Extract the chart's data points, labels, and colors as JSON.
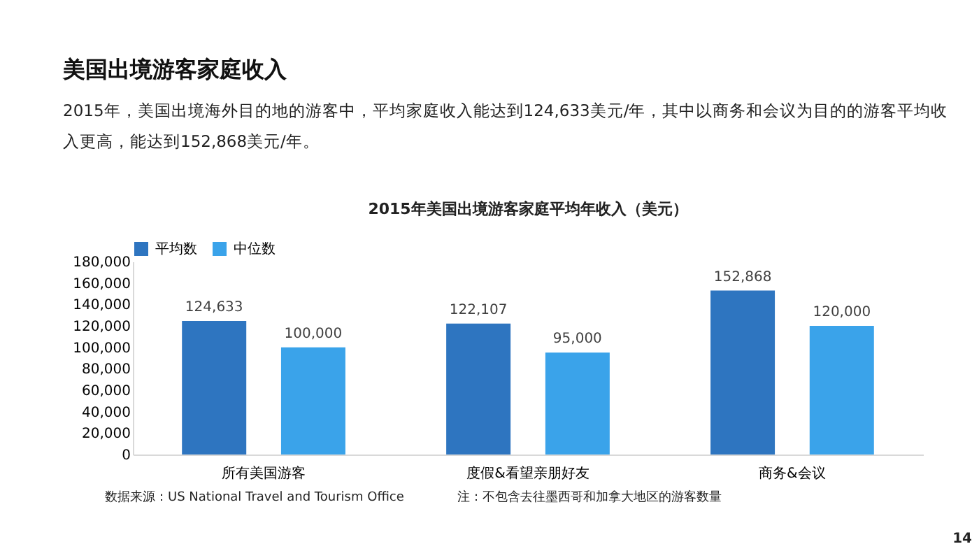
{
  "chart_data": {
    "type": "bar",
    "title": "美国出境游客家庭收入",
    "subtitle": [
      "2015年，美国出境海外目的地的游客中，平均家庭收入能达到124,633美元/年，其中以商务和会议为目的的游客平均收",
      "入更高，能达到152,868美元/年。"
    ],
    "categories": [
      "所有美国游客",
      "度假&看望亲朋好友",
      "商务&会议"
    ],
    "series": [
      {
        "name": "平均数",
        "color": "#2e75c0",
        "values": [
          124633,
          122107,
          152868
        ],
        "value_labels": [
          "124,633",
          "122,107",
          "152,868"
        ]
      },
      {
        "name": "中位数",
        "color": "#3aa3ea",
        "values": [
          100000,
          95000,
          120000
        ],
        "value_labels": [
          "100,000",
          "95,000",
          "120,000"
        ]
      }
    ],
    "ylim": [
      0,
      180000
    ],
    "yticks": [
      0,
      {
        "value": 20000,
        "label": "20,000"
      },
      {
        "value": 40000,
        "label": "40,000"
      },
      {
        "value": 60000,
        "label": "60,000"
      },
      {
        "value": 80000,
        "label": "80,000"
      },
      {
        "value": 100000,
        "label": "100,000"
      },
      {
        "value": 120000,
        "label": "120,000"
      },
      {
        "value": 140000,
        "label": "140,000"
      },
      {
        "value": 160000,
        "label": "160,000"
      },
      {
        "value": 180000,
        "label": "180,000"
      }
    ],
    "grid": false,
    "legend": "top",
    "annotations": [
      "2015年美国出境游客家庭平均年收入（美元）",
      "数据来源：US National Travel and Tourism Office",
      "注：不包含去往墨西哥和加拿大地区的游客数量",
      "14"
    ]
  }
}
